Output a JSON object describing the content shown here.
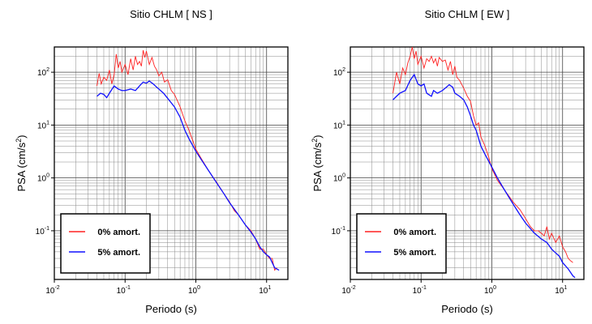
{
  "chart_data": [
    {
      "type": "line",
      "title": "Sitio CHLM [ NS ]",
      "xlabel": "Periodo (s)",
      "ylabel_main": "PSA (cm/s",
      "ylabel_sup": "2",
      "ylabel_end": ")",
      "xscale": "log",
      "yscale": "log",
      "xlim": [
        0.01,
        20
      ],
      "ylim": [
        0.012,
        300
      ],
      "grid": true,
      "x_ticks": [
        {
          "base": "10",
          "exp": "-2"
        },
        {
          "base": "10",
          "exp": "-1"
        },
        {
          "base": "10",
          "exp": "0"
        },
        {
          "base": "10",
          "exp": "1"
        }
      ],
      "y_ticks": [
        {
          "base": "10",
          "exp": "-1"
        },
        {
          "base": "10",
          "exp": "0"
        },
        {
          "base": "10",
          "exp": "1"
        },
        {
          "base": "10",
          "exp": "2"
        }
      ],
      "legend_position": "bottom-left",
      "series": [
        {
          "name": "0% amort.",
          "color": "#ff2020",
          "points": [
            [
              0.04,
              55
            ],
            [
              0.043,
              95
            ],
            [
              0.046,
              60
            ],
            [
              0.05,
              80
            ],
            [
              0.055,
              70
            ],
            [
              0.06,
              110
            ],
            [
              0.065,
              60
            ],
            [
              0.07,
              90
            ],
            [
              0.075,
              220
            ],
            [
              0.08,
              120
            ],
            [
              0.085,
              160
            ],
            [
              0.09,
              100
            ],
            [
              0.1,
              140
            ],
            [
              0.11,
              90
            ],
            [
              0.12,
              180
            ],
            [
              0.13,
              110
            ],
            [
              0.14,
              200
            ],
            [
              0.15,
              140
            ],
            [
              0.16,
              160
            ],
            [
              0.17,
              130
            ],
            [
              0.18,
              260
            ],
            [
              0.19,
              190
            ],
            [
              0.2,
              250
            ],
            [
              0.22,
              140
            ],
            [
              0.24,
              190
            ],
            [
              0.26,
              130
            ],
            [
              0.28,
              110
            ],
            [
              0.3,
              85
            ],
            [
              0.33,
              100
            ],
            [
              0.36,
              65
            ],
            [
              0.4,
              72
            ],
            [
              0.45,
              45
            ],
            [
              0.5,
              38
            ],
            [
              0.6,
              22
            ],
            [
              0.7,
              12
            ],
            [
              0.8,
              8
            ],
            [
              1.0,
              3.5
            ],
            [
              1.2,
              2.3
            ],
            [
              1.5,
              1.4
            ],
            [
              2,
              0.8
            ],
            [
              2.5,
              0.5
            ],
            [
              3,
              0.35
            ],
            [
              3.5,
              0.24
            ],
            [
              4,
              0.2
            ],
            [
              4.5,
              0.16
            ],
            [
              5,
              0.13
            ],
            [
              6,
              0.1
            ],
            [
              7,
              0.07
            ],
            [
              8,
              0.045
            ],
            [
              9,
              0.045
            ],
            [
              10,
              0.035
            ],
            [
              11,
              0.03
            ],
            [
              12,
              0.03
            ],
            [
              13,
              0.018
            ],
            [
              14,
              0.02
            ]
          ]
        },
        {
          "name": "5% amort.",
          "color": "#1010ff",
          "points": [
            [
              0.04,
              35
            ],
            [
              0.045,
              40
            ],
            [
              0.05,
              38
            ],
            [
              0.055,
              33
            ],
            [
              0.06,
              40
            ],
            [
              0.07,
              55
            ],
            [
              0.08,
              48
            ],
            [
              0.09,
              45
            ],
            [
              0.1,
              45
            ],
            [
              0.12,
              48
            ],
            [
              0.14,
              45
            ],
            [
              0.16,
              55
            ],
            [
              0.18,
              65
            ],
            [
              0.2,
              62
            ],
            [
              0.22,
              68
            ],
            [
              0.25,
              60
            ],
            [
              0.28,
              52
            ],
            [
              0.3,
              48
            ],
            [
              0.35,
              40
            ],
            [
              0.4,
              32
            ],
            [
              0.5,
              22
            ],
            [
              0.6,
              14
            ],
            [
              0.7,
              8
            ],
            [
              0.8,
              5.5
            ],
            [
              1.0,
              3.2
            ],
            [
              1.2,
              2.2
            ],
            [
              1.5,
              1.4
            ],
            [
              2,
              0.78
            ],
            [
              2.5,
              0.5
            ],
            [
              3,
              0.34
            ],
            [
              4,
              0.2
            ],
            [
              5,
              0.13
            ],
            [
              6,
              0.095
            ],
            [
              7,
              0.07
            ],
            [
              8,
              0.05
            ],
            [
              9,
              0.04
            ],
            [
              10,
              0.035
            ],
            [
              11,
              0.032
            ],
            [
              12,
              0.025
            ],
            [
              13,
              0.02
            ],
            [
              15,
              0.018
            ]
          ]
        }
      ]
    },
    {
      "type": "line",
      "title": "Sitio CHLM [ EW ]",
      "xlabel": "Periodo (s)",
      "ylabel_main": "PSA (cm/s",
      "ylabel_sup": "2",
      "ylabel_end": ")",
      "xscale": "log",
      "yscale": "log",
      "xlim": [
        0.01,
        20
      ],
      "ylim": [
        0.012,
        300
      ],
      "grid": true,
      "x_ticks": [
        {
          "base": "10",
          "exp": "-2"
        },
        {
          "base": "10",
          "exp": "-1"
        },
        {
          "base": "10",
          "exp": "0"
        },
        {
          "base": "10",
          "exp": "1"
        }
      ],
      "y_ticks": [
        {
          "base": "10",
          "exp": "-1"
        },
        {
          "base": "10",
          "exp": "0"
        },
        {
          "base": "10",
          "exp": "1"
        },
        {
          "base": "10",
          "exp": "2"
        }
      ],
      "legend_position": "bottom-left",
      "series": [
        {
          "name": "0% amort.",
          "color": "#ff2020",
          "points": [
            [
              0.04,
              40
            ],
            [
              0.045,
              100
            ],
            [
              0.05,
              60
            ],
            [
              0.055,
              120
            ],
            [
              0.06,
              90
            ],
            [
              0.065,
              150
            ],
            [
              0.07,
              200
            ],
            [
              0.075,
              300
            ],
            [
              0.08,
              180
            ],
            [
              0.085,
              250
            ],
            [
              0.09,
              140
            ],
            [
              0.1,
              200
            ],
            [
              0.11,
              120
            ],
            [
              0.12,
              180
            ],
            [
              0.13,
              160
            ],
            [
              0.14,
              200
            ],
            [
              0.15,
              150
            ],
            [
              0.16,
              180
            ],
            [
              0.17,
              130
            ],
            [
              0.18,
              190
            ],
            [
              0.2,
              160
            ],
            [
              0.22,
              170
            ],
            [
              0.24,
              110
            ],
            [
              0.26,
              160
            ],
            [
              0.28,
              90
            ],
            [
              0.3,
              130
            ],
            [
              0.32,
              80
            ],
            [
              0.35,
              70
            ],
            [
              0.4,
              50
            ],
            [
              0.45,
              35
            ],
            [
              0.5,
              28
            ],
            [
              0.55,
              15
            ],
            [
              0.6,
              10
            ],
            [
              0.65,
              11
            ],
            [
              0.7,
              6
            ],
            [
              0.8,
              4
            ],
            [
              0.9,
              2.5
            ],
            [
              1.0,
              1.5
            ],
            [
              1.2,
              0.9
            ],
            [
              1.5,
              0.6
            ],
            [
              2,
              0.35
            ],
            [
              2.5,
              0.25
            ],
            [
              3,
              0.17
            ],
            [
              3.5,
              0.12
            ],
            [
              4,
              0.1
            ],
            [
              4.5,
              0.1
            ],
            [
              5,
              0.09
            ],
            [
              5.5,
              0.08
            ],
            [
              6,
              0.12
            ],
            [
              6.5,
              0.07
            ],
            [
              7,
              0.09
            ],
            [
              8,
              0.06
            ],
            [
              9,
              0.08
            ],
            [
              10,
              0.05
            ],
            [
              11,
              0.04
            ],
            [
              12,
              0.03
            ],
            [
              13,
              0.027
            ],
            [
              14,
              0.025
            ]
          ]
        },
        {
          "name": "5% amort.",
          "color": "#1010ff",
          "points": [
            [
              0.04,
              30
            ],
            [
              0.045,
              35
            ],
            [
              0.05,
              40
            ],
            [
              0.06,
              45
            ],
            [
              0.07,
              70
            ],
            [
              0.08,
              90
            ],
            [
              0.09,
              60
            ],
            [
              0.1,
              55
            ],
            [
              0.11,
              60
            ],
            [
              0.12,
              40
            ],
            [
              0.14,
              35
            ],
            [
              0.15,
              45
            ],
            [
              0.17,
              40
            ],
            [
              0.2,
              45
            ],
            [
              0.22,
              50
            ],
            [
              0.25,
              58
            ],
            [
              0.28,
              52
            ],
            [
              0.3,
              40
            ],
            [
              0.35,
              35
            ],
            [
              0.4,
              30
            ],
            [
              0.45,
              22
            ],
            [
              0.5,
              15
            ],
            [
              0.55,
              10
            ],
            [
              0.6,
              8
            ],
            [
              0.7,
              4
            ],
            [
              0.8,
              2.8
            ],
            [
              1.0,
              1.6
            ],
            [
              1.2,
              1.0
            ],
            [
              1.5,
              0.6
            ],
            [
              2,
              0.32
            ],
            [
              2.5,
              0.2
            ],
            [
              3,
              0.14
            ],
            [
              4,
              0.09
            ],
            [
              5,
              0.07
            ],
            [
              6,
              0.06
            ],
            [
              7,
              0.045
            ],
            [
              8,
              0.038
            ],
            [
              9,
              0.033
            ],
            [
              10,
              0.025
            ],
            [
              12,
              0.019
            ],
            [
              14,
              0.014
            ],
            [
              15,
              0.013
            ]
          ]
        }
      ]
    }
  ]
}
